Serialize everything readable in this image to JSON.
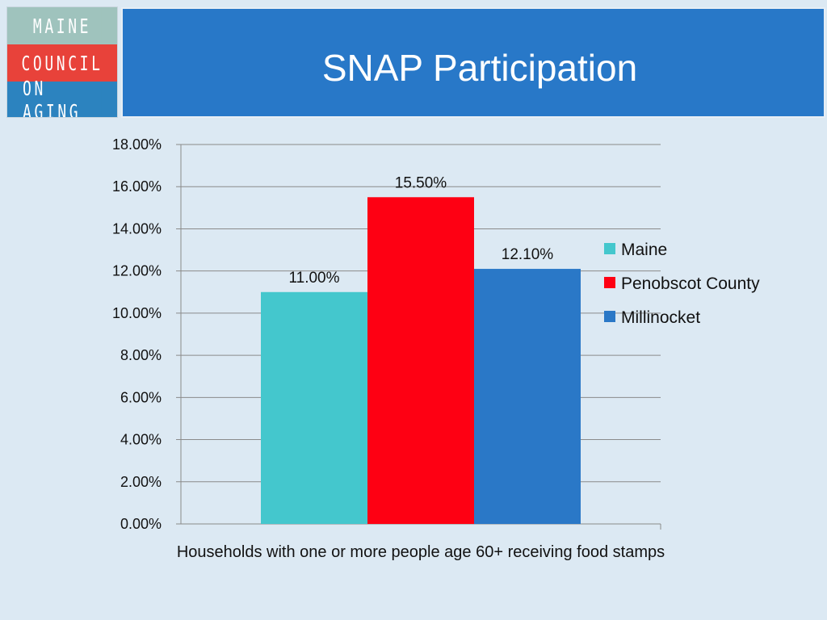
{
  "logo": {
    "lines": [
      "MAINE",
      "COUNCIL",
      "ON AGING"
    ],
    "colors": [
      "#9fc3bd",
      "#e8423a",
      "#2c83bf"
    ]
  },
  "header": {
    "title": "SNAP Participation",
    "background": "#2878c8"
  },
  "chart_data": {
    "type": "bar",
    "title": "SNAP Participation",
    "categories": [
      "Households with one or more people age 60+ receiving food stamps"
    ],
    "series": [
      {
        "name": "Maine",
        "values": [
          11.0
        ],
        "label": "11.00%",
        "color": "#44c7cd"
      },
      {
        "name": "Penobscot County",
        "values": [
          15.5
        ],
        "label": "15.50%",
        "color": "#fe0013"
      },
      {
        "name": "Millinocket",
        "values": [
          12.1
        ],
        "label": "12.10%",
        "color": "#2a78c7"
      }
    ],
    "ylim": [
      0,
      18
    ],
    "yticks": [
      0,
      2,
      4,
      6,
      8,
      10,
      12,
      14,
      16,
      18
    ],
    "ytick_labels": [
      "0.00%",
      "2.00%",
      "4.00%",
      "6.00%",
      "8.00%",
      "10.00%",
      "12.00%",
      "14.00%",
      "16.00%",
      "18.00%"
    ],
    "xlabel": "Households with one or more people age 60+ receiving food stamps",
    "ylabel": "",
    "grid": true,
    "legend_position": "right"
  }
}
